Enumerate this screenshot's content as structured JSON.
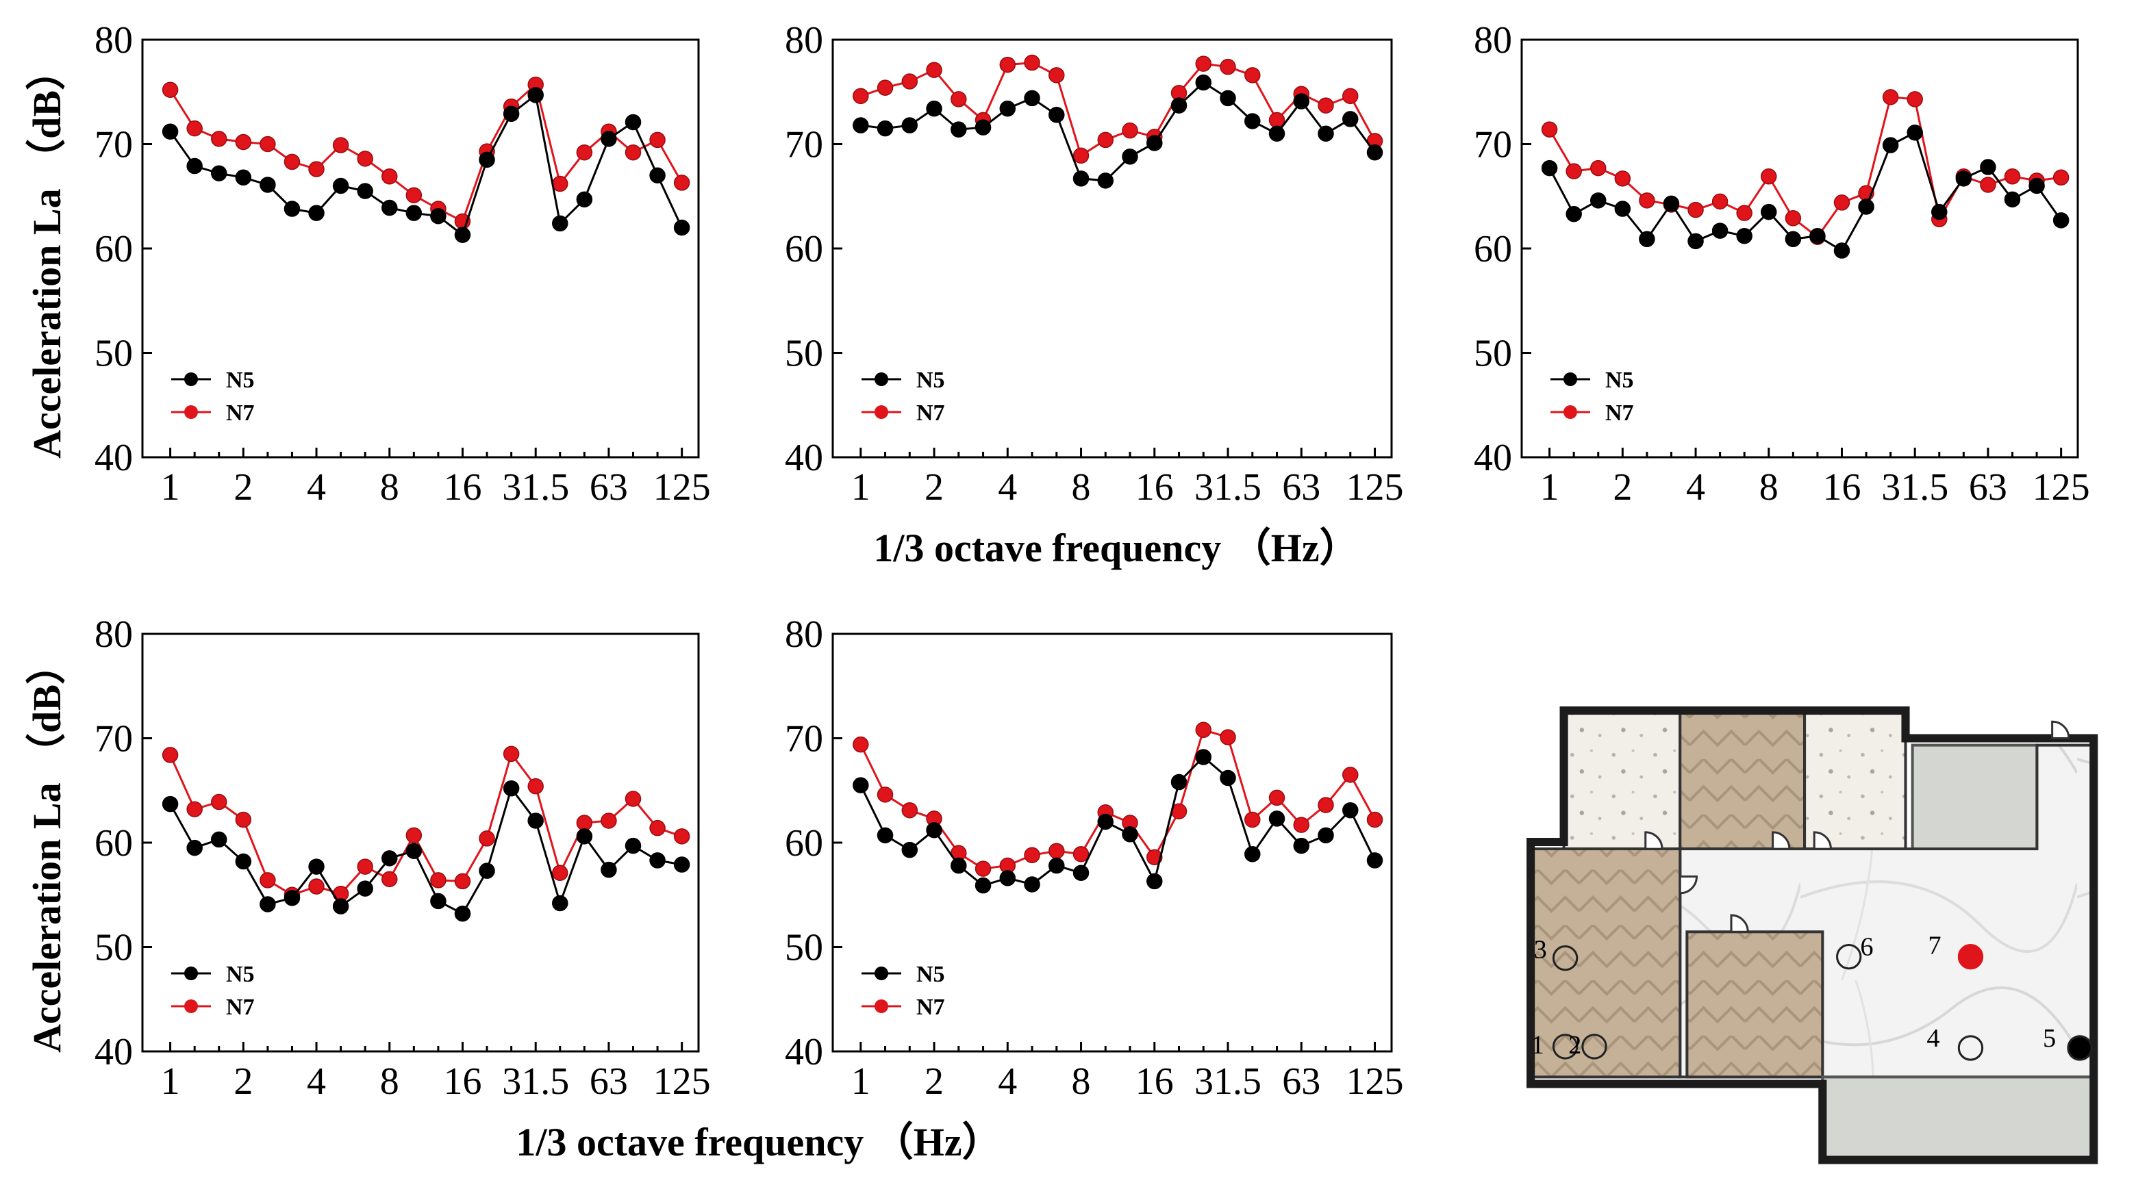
{
  "axis_text": {
    "ylabel": "Acceleration La （dB）",
    "xlabel": "1/3 octave frequency （Hz）"
  },
  "colors": {
    "N5": "#000000",
    "N7": "#e0141b"
  },
  "chart_data": [
    {
      "type": "line",
      "x_tick_labels": [
        "1",
        "2",
        "4",
        "8",
        "16",
        "31.5",
        "63",
        "125"
      ],
      "ylim": [
        40,
        80
      ],
      "yticks": [
        40,
        50,
        60,
        70,
        80
      ],
      "legend": {
        "position": "bottom-left"
      },
      "grid": false,
      "series": [
        {
          "name": "N5",
          "values": [
            71.2,
            67.9,
            67.2,
            66.8,
            66.1,
            63.8,
            63.4,
            66.0,
            65.5,
            63.9,
            63.4,
            63.1,
            61.3,
            68.5,
            72.9,
            74.7,
            62.4,
            64.7,
            70.5,
            72.1,
            67.0,
            62.0
          ]
        },
        {
          "name": "N7",
          "values": [
            75.2,
            71.5,
            70.5,
            70.2,
            70.0,
            68.3,
            67.6,
            69.9,
            68.6,
            66.9,
            65.1,
            63.8,
            62.6,
            69.3,
            73.6,
            75.7,
            66.2,
            69.2,
            71.2,
            69.2,
            70.4,
            66.3
          ]
        }
      ]
    },
    {
      "type": "line",
      "x_tick_labels": [
        "1",
        "2",
        "4",
        "8",
        "16",
        "31.5",
        "63",
        "125"
      ],
      "ylim": [
        40,
        80
      ],
      "yticks": [
        40,
        50,
        60,
        70,
        80
      ],
      "legend": {
        "position": "bottom-left"
      },
      "grid": false,
      "series": [
        {
          "name": "N5",
          "values": [
            71.8,
            71.5,
            71.8,
            73.4,
            71.4,
            71.6,
            73.4,
            74.4,
            72.8,
            66.7,
            66.5,
            68.8,
            70.1,
            73.7,
            75.9,
            74.4,
            72.2,
            71.0,
            74.1,
            71.0,
            72.4,
            69.2
          ]
        },
        {
          "name": "N7",
          "values": [
            74.6,
            75.4,
            76.0,
            77.1,
            74.3,
            72.3,
            77.6,
            77.8,
            76.6,
            68.9,
            70.4,
            71.3,
            70.7,
            74.9,
            77.7,
            77.4,
            76.6,
            72.3,
            74.8,
            73.7,
            74.6,
            70.3
          ]
        }
      ]
    },
    {
      "type": "line",
      "x_tick_labels": [
        "1",
        "2",
        "4",
        "8",
        "16",
        "31.5",
        "63",
        "125"
      ],
      "ylim": [
        40,
        80
      ],
      "yticks": [
        40,
        50,
        60,
        70,
        80
      ],
      "legend": {
        "position": "bottom-left"
      },
      "grid": false,
      "series": [
        {
          "name": "N5",
          "values": [
            67.7,
            63.3,
            64.6,
            63.8,
            60.9,
            64.3,
            60.7,
            61.7,
            61.2,
            63.5,
            60.9,
            61.2,
            59.8,
            64.0,
            69.9,
            71.1,
            63.5,
            66.7,
            67.8,
            64.7,
            66.0,
            62.7
          ]
        },
        {
          "name": "N7",
          "values": [
            71.4,
            67.4,
            67.7,
            66.7,
            64.6,
            64.2,
            63.7,
            64.5,
            63.4,
            66.9,
            62.9,
            61.1,
            64.4,
            65.3,
            74.5,
            74.3,
            62.8,
            66.9,
            66.1,
            66.9,
            66.5,
            66.8
          ]
        }
      ]
    },
    {
      "type": "line",
      "x_tick_labels": [
        "1",
        "2",
        "4",
        "8",
        "16",
        "31.5",
        "63",
        "125"
      ],
      "ylim": [
        40,
        80
      ],
      "yticks": [
        40,
        50,
        60,
        70,
        80
      ],
      "legend": {
        "position": "bottom-left"
      },
      "grid": false,
      "series": [
        {
          "name": "N5",
          "values": [
            63.7,
            59.5,
            60.3,
            58.2,
            54.1,
            54.7,
            57.7,
            53.9,
            55.6,
            58.5,
            59.2,
            54.4,
            53.2,
            57.3,
            65.2,
            62.1,
            54.2,
            60.6,
            57.4,
            59.7,
            58.3,
            57.9
          ]
        },
        {
          "name": "N7",
          "values": [
            68.4,
            63.2,
            63.9,
            62.2,
            56.4,
            55.0,
            55.8,
            55.1,
            57.7,
            56.5,
            60.7,
            56.4,
            56.3,
            60.4,
            68.5,
            65.4,
            57.1,
            61.9,
            62.1,
            64.2,
            61.4,
            60.6
          ]
        }
      ]
    },
    {
      "type": "line",
      "x_tick_labels": [
        "1",
        "2",
        "4",
        "8",
        "16",
        "31.5",
        "63",
        "125"
      ],
      "ylim": [
        40,
        80
      ],
      "yticks": [
        40,
        50,
        60,
        70,
        80
      ],
      "legend": {
        "position": "bottom-left"
      },
      "grid": false,
      "series": [
        {
          "name": "N5",
          "values": [
            65.5,
            60.7,
            59.3,
            61.2,
            57.8,
            55.9,
            56.6,
            56.0,
            57.8,
            57.1,
            62.0,
            60.8,
            56.3,
            65.8,
            68.2,
            66.2,
            58.9,
            62.3,
            59.7,
            60.7,
            63.1,
            58.3
          ]
        },
        {
          "name": "N7",
          "values": [
            69.4,
            64.6,
            63.1,
            62.3,
            59.0,
            57.5,
            57.8,
            58.8,
            59.2,
            58.9,
            62.9,
            61.9,
            58.6,
            63.0,
            70.8,
            70.1,
            62.2,
            64.3,
            61.7,
            63.6,
            66.5,
            62.2
          ]
        }
      ]
    }
  ],
  "floorplan": {
    "points": [
      {
        "label": "1",
        "state": "empty"
      },
      {
        "label": "2",
        "state": "empty"
      },
      {
        "label": "3",
        "state": "empty"
      },
      {
        "label": "4",
        "state": "empty"
      },
      {
        "label": "5",
        "state": "black"
      },
      {
        "label": "6",
        "state": "empty"
      },
      {
        "label": "7",
        "state": "red"
      }
    ]
  }
}
